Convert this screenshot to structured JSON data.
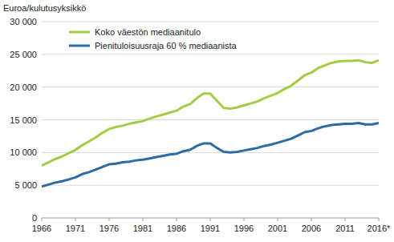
{
  "chart_data": {
    "type": "line",
    "ylabel": "Euroa/kulutusyksikkö",
    "x": [
      1966,
      1967,
      1968,
      1969,
      1970,
      1971,
      1972,
      1973,
      1974,
      1975,
      1976,
      1977,
      1978,
      1979,
      1980,
      1981,
      1982,
      1983,
      1984,
      1985,
      1986,
      1987,
      1988,
      1989,
      1990,
      1991,
      1992,
      1993,
      1994,
      1995,
      1996,
      1997,
      1998,
      1999,
      2000,
      2001,
      2002,
      2003,
      2004,
      2005,
      2006,
      2007,
      2008,
      2009,
      2010,
      2011,
      2012,
      2013,
      2014,
      2015,
      2016
    ],
    "series": [
      {
        "name": "Koko väestön mediaanitulo",
        "color": "#a3cc45",
        "values": [
          8000,
          8500,
          9000,
          9400,
          9900,
          10400,
          11100,
          11700,
          12300,
          13000,
          13600,
          13900,
          14100,
          14400,
          14600,
          14800,
          15200,
          15500,
          15800,
          16100,
          16400,
          17000,
          17400,
          18300,
          19000,
          19000,
          17900,
          16800,
          16700,
          16900,
          17200,
          17500,
          17800,
          18300,
          18700,
          19100,
          19700,
          20200,
          21000,
          21800,
          22200,
          22900,
          23300,
          23700,
          23900,
          24000,
          24000,
          24100,
          23800,
          23700,
          24100
        ]
      },
      {
        "name": "Pienituloisuusraja 60 % mediaanista",
        "color": "#2a6ca5",
        "values": [
          4800,
          5100,
          5400,
          5600,
          5900,
          6200,
          6700,
          7000,
          7400,
          7800,
          8200,
          8300,
          8500,
          8600,
          8800,
          8900,
          9100,
          9300,
          9500,
          9700,
          9800,
          10200,
          10400,
          11000,
          11400,
          11400,
          10700,
          10100,
          10000,
          10100,
          10300,
          10500,
          10700,
          11000,
          11200,
          11500,
          11800,
          12100,
          12600,
          13100,
          13300,
          13700,
          14000,
          14200,
          14300,
          14400,
          14400,
          14500,
          14300,
          14300,
          14500
        ]
      }
    ],
    "xlim": [
      1966,
      2016
    ],
    "xticks": [
      1966,
      1971,
      1976,
      1981,
      1986,
      1991,
      1996,
      2001,
      2006,
      2011,
      {
        "value": 2016,
        "label": "2016*"
      }
    ],
    "ylim": [
      0,
      30000
    ],
    "yticks": [
      0,
      {
        "value": 5000,
        "label": "5 000"
      },
      {
        "value": 10000,
        "label": "10 000"
      },
      {
        "value": 15000,
        "label": "15 000"
      },
      {
        "value": 20000,
        "label": "20 000"
      },
      {
        "value": 25000,
        "label": "25 000"
      },
      {
        "value": 30000,
        "label": "30 000"
      }
    ],
    "grid": true,
    "legend": "top-left"
  }
}
